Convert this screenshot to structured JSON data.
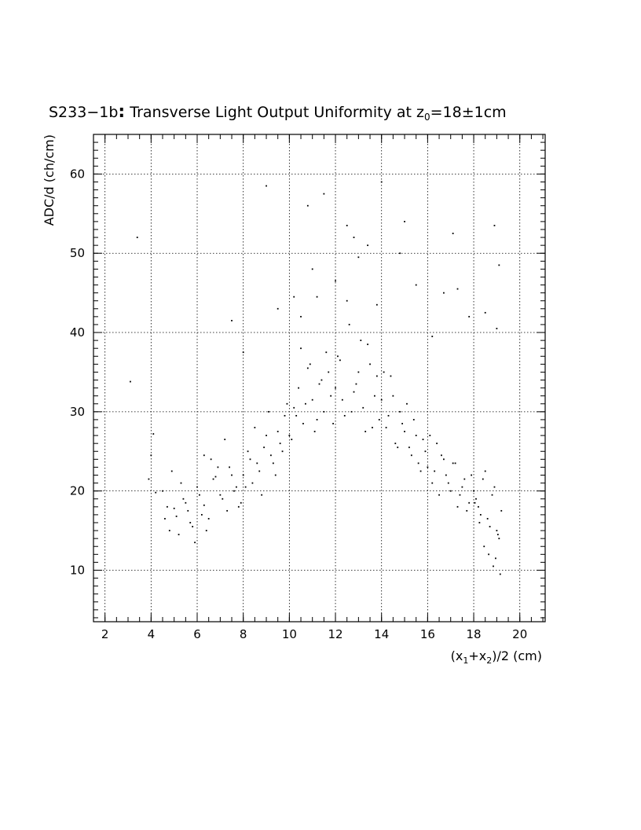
{
  "chart_data": {
    "type": "scatter",
    "title": {
      "prefix": "S233−1b",
      "colon": ":",
      "main": " Transverse Light Output Uniformity at z",
      "main_sub": "0",
      "suffix": "=18±1cm"
    },
    "xlabel": {
      "p1": "(x",
      "s1": "1",
      "p2": "+x",
      "s2": "2",
      "p3": ")/2 (cm)"
    },
    "ylabel": "ADC/d (ch/cm)",
    "xlim": [
      1.5,
      21.1
    ],
    "ylim": [
      3.5,
      65
    ],
    "x_ticks": [
      {
        "value": 2,
        "label": "2"
      },
      {
        "value": 4,
        "label": "4"
      },
      {
        "value": 6,
        "label": "6"
      },
      {
        "value": 8,
        "label": "8"
      },
      {
        "value": 10,
        "label": "10"
      },
      {
        "value": 12,
        "label": "12"
      },
      {
        "value": 14,
        "label": "14"
      },
      {
        "value": 16,
        "label": "16"
      },
      {
        "value": 18,
        "label": "18"
      },
      {
        "value": 20,
        "label": "20"
      }
    ],
    "y_ticks": [
      {
        "value": 10,
        "label": "10"
      },
      {
        "value": 20,
        "label": "20"
      },
      {
        "value": 30,
        "label": "30"
      },
      {
        "value": 40,
        "label": "40"
      },
      {
        "value": 50,
        "label": "50"
      },
      {
        "value": 60,
        "label": "60"
      }
    ],
    "x_minor_step": 0.5,
    "y_minor_step": 1,
    "grid": true,
    "point_color": "#000000",
    "points": {
      "x": [
        3.4,
        3.1,
        4.1,
        4.0,
        3.9,
        4.2,
        4.6,
        4.8,
        5.0,
        5.3,
        5.5,
        5.7,
        5.9,
        6.1,
        6.2,
        4.5,
        4.7,
        4.9,
        5.1,
        5.2,
        5.4,
        5.6,
        5.8,
        6.0,
        6.3,
        6.5,
        6.7,
        6.9,
        7.1,
        7.3,
        7.5,
        7.7,
        7.9,
        6.4,
        6.6,
        6.8,
        7.0,
        7.2,
        7.4,
        7.6,
        7.8,
        8.0,
        8.2,
        8.4,
        8.6,
        8.8,
        9.0,
        9.2,
        9.4,
        9.6,
        9.8,
        8.1,
        8.3,
        8.5,
        8.7,
        8.9,
        9.1,
        9.3,
        9.5,
        9.7,
        9.9,
        10.0,
        10.2,
        10.4,
        10.6,
        10.8,
        11.0,
        11.2,
        11.4,
        11.6,
        11.8,
        10.1,
        10.3,
        10.5,
        10.7,
        10.9,
        11.1,
        11.3,
        11.5,
        11.7,
        11.9,
        12.0,
        12.2,
        12.4,
        12.6,
        12.8,
        13.0,
        13.2,
        13.4,
        13.6,
        13.8,
        12.1,
        12.3,
        12.5,
        12.7,
        12.9,
        13.1,
        13.3,
        13.5,
        13.7,
        13.9,
        14.0,
        14.2,
        14.4,
        14.6,
        14.8,
        15.0,
        15.2,
        15.4,
        15.6,
        15.8,
        14.1,
        14.3,
        14.5,
        14.7,
        14.9,
        15.1,
        15.3,
        15.5,
        15.7,
        15.9,
        16.0,
        16.2,
        16.4,
        16.6,
        16.8,
        17.0,
        17.2,
        17.4,
        17.6,
        17.8,
        16.1,
        16.3,
        16.5,
        16.7,
        16.9,
        17.1,
        17.3,
        17.5,
        17.7,
        17.9,
        18.0,
        18.2,
        18.4,
        18.6,
        18.8,
        19.0,
        19.2,
        18.1,
        18.3,
        18.5,
        18.7,
        18.9,
        19.1,
        18.05,
        18.25,
        18.45,
        18.65,
        18.85,
        19.05,
        18.95,
        19.15,
        9.0,
        10.8,
        11.5,
        12.5,
        13.4,
        14.0,
        15.0,
        17.1,
        18.9,
        19.1,
        11.0,
        13.0,
        12.0,
        16.7,
        17.3,
        14.8,
        13.8,
        10.5,
        8.0,
        6.3,
        7.5,
        19.0,
        18.5,
        12.8,
        11.2,
        15.5,
        16.2,
        17.8,
        9.5,
        10.2
      ],
      "y": [
        52.0,
        33.8,
        27.2,
        24.5,
        21.5,
        19.8,
        16.5,
        15.0,
        17.8,
        21.0,
        18.5,
        16.0,
        13.5,
        19.5,
        17.0,
        20.0,
        18.0,
        22.5,
        16.8,
        14.5,
        19.0,
        17.5,
        15.5,
        20.5,
        18.2,
        16.5,
        21.5,
        23.0,
        19.0,
        17.5,
        22.0,
        20.5,
        18.5,
        15.0,
        24.0,
        21.8,
        19.5,
        26.5,
        23.0,
        20.0,
        18.0,
        22.0,
        25.0,
        21.0,
        23.5,
        19.5,
        27.0,
        24.5,
        22.0,
        26.0,
        29.5,
        20.5,
        24.0,
        28.0,
        22.5,
        25.5,
        30.0,
        23.5,
        27.5,
        25.0,
        31.0,
        27.0,
        30.5,
        33.0,
        28.5,
        35.5,
        31.5,
        29.0,
        34.0,
        37.5,
        32.0,
        26.5,
        29.5,
        38.0,
        31.0,
        36.0,
        27.5,
        33.5,
        30.0,
        35.0,
        28.5,
        33.0,
        36.5,
        29.5,
        41.0,
        32.5,
        35.0,
        30.5,
        38.5,
        28.0,
        34.5,
        37.0,
        31.5,
        44.0,
        30.0,
        33.5,
        39.0,
        27.5,
        36.0,
        32.0,
        29.0,
        31.5,
        28.0,
        34.5,
        26.0,
        30.0,
        27.5,
        25.5,
        29.0,
        23.5,
        26.5,
        35.0,
        29.5,
        32.0,
        25.5,
        28.5,
        31.0,
        24.5,
        27.0,
        22.5,
        25.0,
        23.0,
        21.0,
        26.0,
        24.5,
        22.0,
        20.0,
        23.5,
        19.5,
        21.5,
        18.5,
        27.0,
        22.5,
        19.5,
        24.0,
        21.0,
        23.5,
        18.0,
        20.5,
        17.5,
        22.0,
        20.0,
        18.0,
        21.5,
        16.5,
        19.5,
        15.0,
        17.5,
        19.0,
        17.0,
        22.5,
        15.5,
        20.5,
        14.0,
        18.5,
        16.0,
        13.0,
        12.0,
        10.5,
        14.5,
        11.5,
        9.5,
        58.5,
        56.0,
        57.5,
        53.5,
        51.0,
        59.0,
        54.0,
        52.5,
        53.5,
        48.5,
        48.0,
        49.5,
        46.5,
        45.0,
        45.5,
        50.0,
        43.5,
        42.0,
        37.5,
        24.5,
        41.5,
        40.5,
        42.5,
        52.0,
        44.5,
        46.0,
        39.5,
        42.0,
        43.0,
        44.5
      ]
    }
  }
}
